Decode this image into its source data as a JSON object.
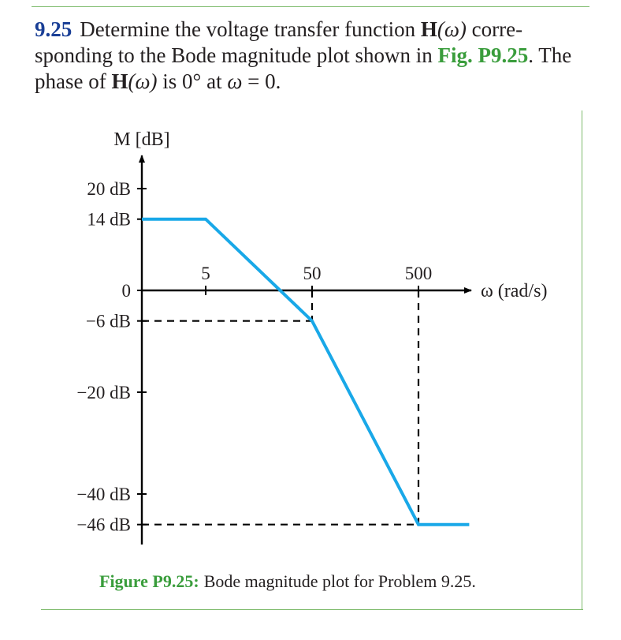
{
  "problem": {
    "number": "9.25",
    "text_line1_a": "Determine the voltage transfer function ",
    "H": "H",
    "omega_paren": "(ω)",
    "text_line1_b": " corre-",
    "text_line2_a": "sponding to the Bode magnitude plot shown in ",
    "fig_ref": "Fig. P9.25",
    "text_line2_b": ". The",
    "text_line3_a": "phase of ",
    "text_line3_b": " is 0° at ",
    "omega": "ω",
    "text_line3_c": " = 0."
  },
  "figure": {
    "caption_label": "Figure P9.25:",
    "caption_text": "Bode magnitude plot for Problem 9.25."
  },
  "chart_data": {
    "type": "line",
    "title": "",
    "ylabel": "M [dB]",
    "xlabel": "ω (rad/s)",
    "x_scale": "log",
    "x_ticks": [
      5,
      50,
      500
    ],
    "x_tick_labels": [
      "5",
      "50",
      "500"
    ],
    "y_ticks": [
      20,
      14,
      0,
      -6,
      -20,
      -40,
      -46
    ],
    "y_tick_labels": [
      "20 dB",
      "14 dB",
      "0",
      "−6 dB",
      "−20 dB",
      "−40 dB",
      "−46 dB"
    ],
    "series": [
      {
        "x": [
          0.5,
          5,
          50,
          500,
          1500
        ],
        "y": [
          14,
          14,
          -6,
          -46,
          -46
        ],
        "color": "#19a8e8"
      }
    ],
    "dashed_guides": [
      {
        "from": [
          0.5,
          -6
        ],
        "to": [
          50,
          -6
        ]
      },
      {
        "from": [
          50,
          0
        ],
        "to": [
          50,
          -6
        ]
      },
      {
        "from": [
          0.5,
          -46
        ],
        "to": [
          500,
          -46
        ]
      },
      {
        "from": [
          500,
          0
        ],
        "to": [
          500,
          -46
        ]
      }
    ],
    "grid": false,
    "axis_color": "#000000"
  }
}
